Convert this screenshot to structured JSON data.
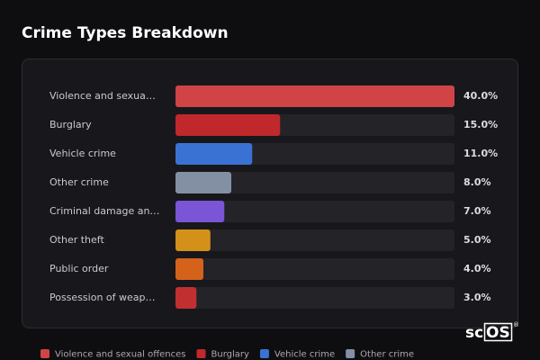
{
  "chart_data": {
    "type": "bar",
    "orientation": "horizontal",
    "title": "Crime Types Breakdown",
    "categories": [
      "Violence and sexua…",
      "Burglary",
      "Vehicle crime",
      "Other crime",
      "Criminal damage an…",
      "Other theft",
      "Public order",
      "Possession of weap…"
    ],
    "values": [
      40,
      15,
      11,
      8,
      7,
      5,
      4,
      3
    ],
    "value_labels": [
      "40.0%",
      "15.0%",
      "11.0%",
      "8.0%",
      "7.0%",
      "5.0%",
      "4.0%",
      "3.0%"
    ],
    "colors": [
      "#d04446",
      "#c0282b",
      "#3a72d4",
      "#8390a3",
      "#7a55d6",
      "#d4911a",
      "#d4621b",
      "#c22f31"
    ],
    "xlim": [
      0,
      40
    ],
    "legend": [
      {
        "name": "Violence and sexual offences",
        "color": "#d04446"
      },
      {
        "name": "Burglary",
        "color": "#c0282b"
      },
      {
        "name": "Vehicle crime",
        "color": "#3a72d4"
      },
      {
        "name": "Other crime",
        "color": "#8390a3"
      }
    ]
  },
  "logo": {
    "prefix": "sc",
    "boxed": "OS",
    "mark": "®"
  }
}
